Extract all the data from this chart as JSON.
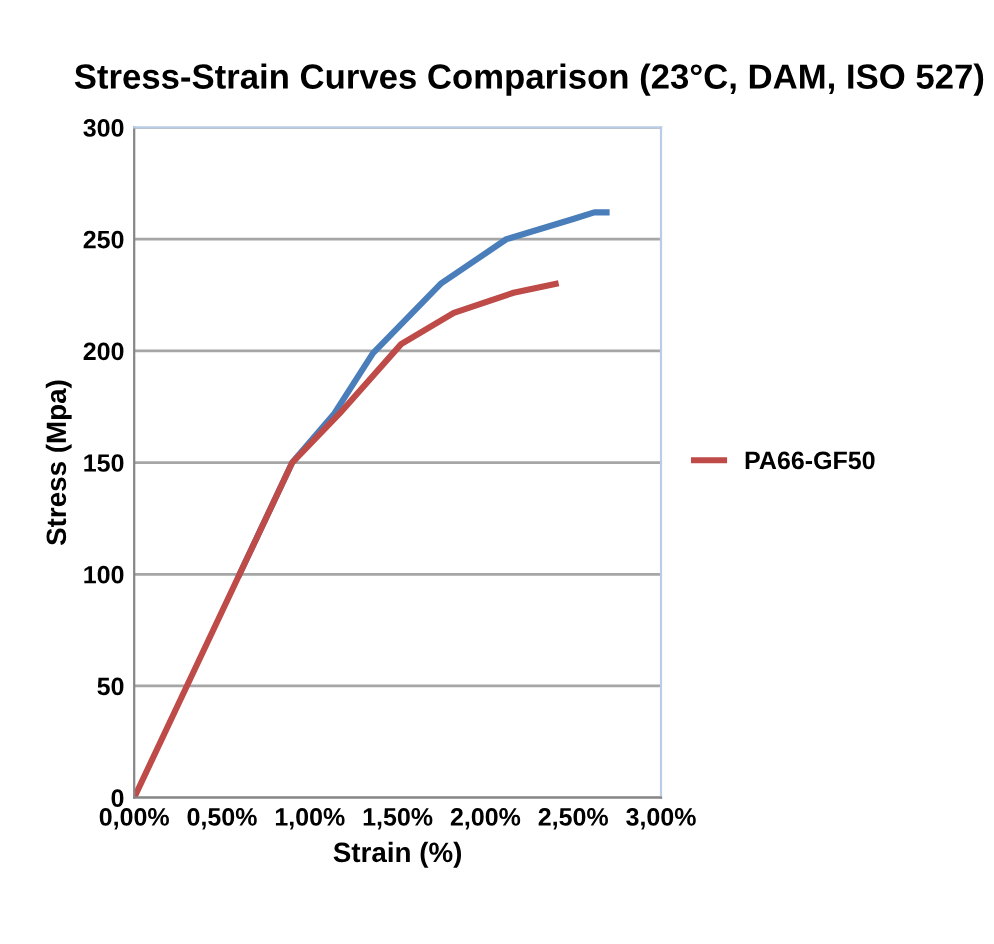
{
  "chart_data": {
    "type": "line",
    "title": "Stress-Strain Curves Comparison (23°C, DAM, ISO 527)",
    "xlabel": "Strain (%)",
    "ylabel": "Stress (Mpa)",
    "series": [
      {
        "color": "#4a7ebb",
        "x": [
          0.6,
          0.9,
          1.14,
          1.36,
          1.745,
          2.12,
          2.5,
          2.62,
          2.69
        ],
        "values": [
          100,
          150,
          172,
          199,
          230,
          250,
          259,
          262,
          262
        ]
      },
      {
        "name": "PA66-GF50",
        "color": "#be4b48",
        "x": [
          0,
          0.3,
          0.6,
          0.9,
          1.17,
          1.52,
          1.82,
          2.16,
          2.4
        ],
        "values": [
          0,
          50,
          100,
          150,
          172,
          203,
          217,
          226,
          230
        ]
      }
    ],
    "xlim": [
      0,
      3
    ],
    "xticks": [
      {
        "value": 0,
        "label": "0,00%"
      },
      {
        "value": 0.5,
        "label": "0,50%"
      },
      {
        "value": 1,
        "label": "1,00%"
      },
      {
        "value": 1.5,
        "label": "1,50%"
      },
      {
        "value": 2,
        "label": "2,00%"
      },
      {
        "value": 2.5,
        "label": "2,50%"
      },
      {
        "value": 3,
        "label": "3,00%"
      }
    ],
    "ylim": [
      0,
      300
    ],
    "yticks": [
      0,
      50,
      100,
      150,
      200,
      250,
      300
    ],
    "grid": "y",
    "legend": "right",
    "marker": "none",
    "line_style": "solid"
  }
}
